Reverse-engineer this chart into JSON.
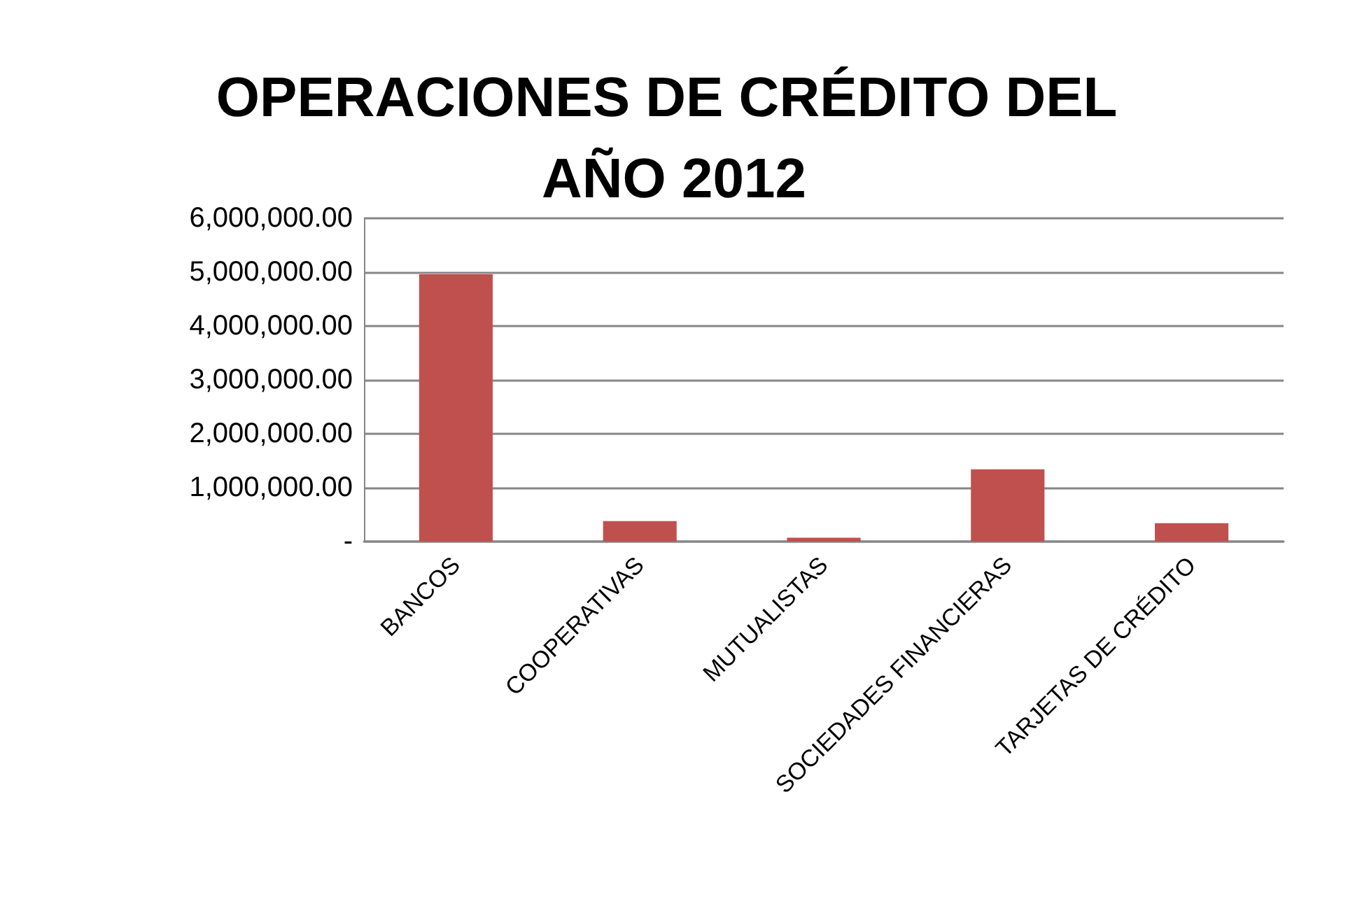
{
  "chart_data": {
    "type": "bar",
    "title": "OPERACIONES DE CRÉDITO DEL AÑO 2012",
    "categories": [
      "BANCOS",
      "COOPERATIVAS",
      "MUTUALISTAS",
      "SOCIEDADES FINANCIERAS",
      "TARJETAS DE CRÉDITO"
    ],
    "values": [
      4960000,
      380000,
      70000,
      1340000,
      340000
    ],
    "color": "#c0504d",
    "ylim": [
      0,
      6000000
    ],
    "yticks": [
      {
        "value": 0,
        "label": "-"
      },
      {
        "value": 1000000,
        "label": "1,000,000.00"
      },
      {
        "value": 2000000,
        "label": "2,000,000.00"
      },
      {
        "value": 3000000,
        "label": "3,000,000.00"
      },
      {
        "value": 4000000,
        "label": "4,000,000.00"
      },
      {
        "value": 5000000,
        "label": "5,000,000.00"
      },
      {
        "value": 6000000,
        "label": "6,000,000.00"
      }
    ],
    "grid": "y"
  }
}
